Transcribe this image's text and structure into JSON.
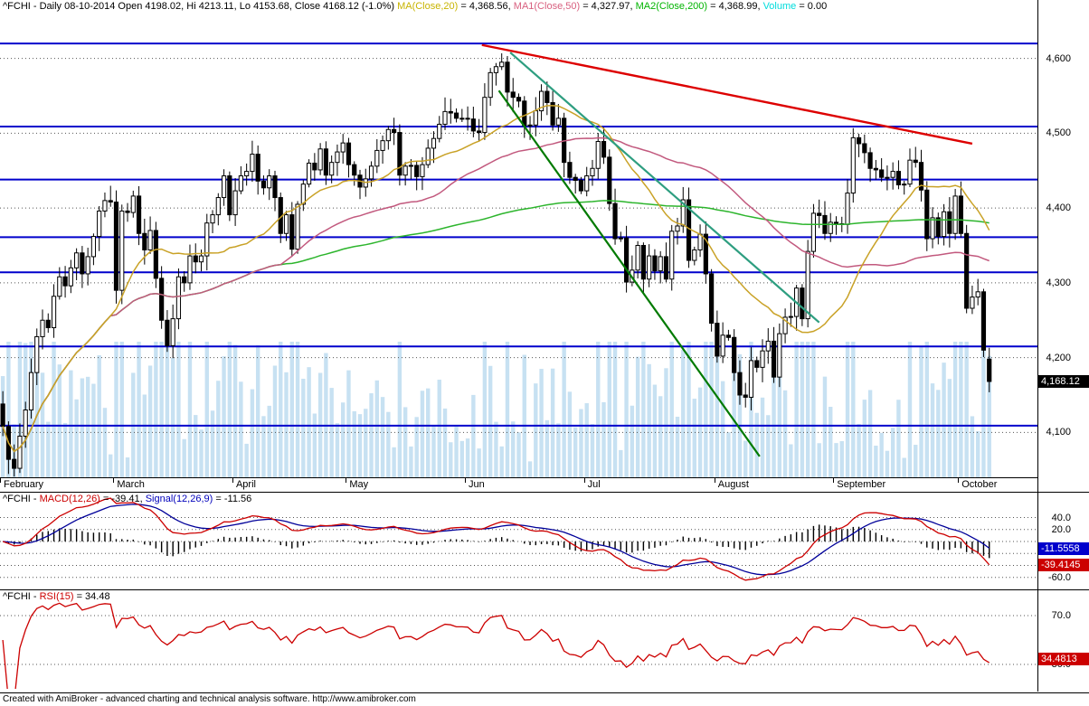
{
  "title_bar": {
    "segments": [
      {
        "text": "^FCHI - Daily 08-10-2014 Open 4198.02, Hi 4213.11, Lo 4153.68, Close 4168.12 (-1.0%) ",
        "color": "#000000"
      },
      {
        "text": "MA(Close,20)",
        "color": "#c8b400"
      },
      {
        "text": " = 4,368.56, ",
        "color": "#000000"
      },
      {
        "text": "MA1(Close,50)",
        "color": "#d8607f"
      },
      {
        "text": " = 4,327.97, ",
        "color": "#000000"
      },
      {
        "text": "MA2(Close,200)",
        "color": "#00b400"
      },
      {
        "text": " = 4,368.99, ",
        "color": "#000000"
      },
      {
        "text": "Volume",
        "color": "#00dcdc"
      },
      {
        "text": " = 0.00",
        "color": "#000000"
      }
    ]
  },
  "footer": {
    "text": "Created with AmiBroker - advanced charting and technical analysis software. http://www.amibroker.com"
  },
  "chart_data": [
    {
      "type": "candlestick",
      "name": "FCHI-daily-price",
      "symbol": "^FCHI",
      "interval": "Daily",
      "date_label": "08-10-2014",
      "ylim": [
        4040,
        4660
      ],
      "yticks": [
        {
          "value": 4600,
          "label": "4,600"
        },
        {
          "value": 4500,
          "label": "4,500"
        },
        {
          "value": 4400,
          "label": "4,400"
        },
        {
          "value": 4300,
          "label": "4,300"
        },
        {
          "value": 4200,
          "label": "4,200"
        },
        {
          "value": 4100,
          "label": "4,100"
        }
      ],
      "last_price": 4168.12,
      "last_price_label": "4,168.12",
      "total_slots": 183,
      "first_open": 4138,
      "months": [
        {
          "label": "February",
          "bar": 0
        },
        {
          "label": "March",
          "bar": 20
        },
        {
          "label": "April",
          "bar": 41
        },
        {
          "label": "May",
          "bar": 61
        },
        {
          "label": "Jun",
          "bar": 82
        },
        {
          "label": "Jul",
          "bar": 103
        },
        {
          "label": "August",
          "bar": 126
        },
        {
          "label": "September",
          "bar": 147
        },
        {
          "label": "October",
          "bar": 169
        }
      ],
      "closes": [
        4108,
        4064,
        4052,
        4095,
        4130,
        4180,
        4228,
        4250,
        4240,
        4282,
        4308,
        4296,
        4320,
        4340,
        4312,
        4335,
        4362,
        4396,
        4410,
        4408,
        4290,
        4396,
        4394,
        4416,
        4366,
        4344,
        4370,
        4306,
        4250,
        4216,
        4252,
        4308,
        4300,
        4336,
        4328,
        4336,
        4380,
        4391,
        4414,
        4443,
        4391,
        4423,
        4443,
        4449,
        4472,
        4436,
        4427,
        4443,
        4414,
        4366,
        4391,
        4345,
        4405,
        4432,
        4460,
        4451,
        4479,
        4444,
        4461,
        4475,
        4487,
        4458,
        4444,
        4428,
        4439,
        4456,
        4477,
        4490,
        4505,
        4501,
        4444,
        4456,
        4457,
        4442,
        4458,
        4480,
        4493,
        4512,
        4529,
        4527,
        4520,
        4520,
        4519,
        4503,
        4501,
        4548,
        4581,
        4589,
        4595,
        4555,
        4548,
        4543,
        4510,
        4511,
        4530,
        4556,
        4541,
        4511,
        4520,
        4461,
        4441,
        4437,
        4423,
        4443,
        4453,
        4489,
        4468,
        4406,
        4359,
        4360,
        4301,
        4317,
        4350,
        4305,
        4336,
        4316,
        4335,
        4305,
        4369,
        4376,
        4411,
        4330,
        4344,
        4365,
        4312,
        4246,
        4202,
        4230,
        4227,
        4180,
        4150,
        4147,
        4196,
        4187,
        4209,
        4222,
        4174,
        4232,
        4254,
        4255,
        4293,
        4252,
        4342,
        4393,
        4390,
        4366,
        4381,
        4379,
        4378,
        4420,
        4494,
        4486,
        4474,
        4453,
        4451,
        4441,
        4441,
        4449,
        4431,
        4432,
        4464,
        4461,
        4424,
        4359,
        4387,
        4362,
        4395,
        4366,
        4416,
        4366,
        4266,
        4281,
        4288,
        4210,
        4168
      ],
      "last_candle": {
        "open": 4198.02,
        "high": 4213.11,
        "low": 4153.68,
        "close": 4168.12
      },
      "support_levels": [
        4620,
        4509,
        4438,
        4361,
        4314,
        4215,
        4109
      ],
      "support_color": "#0000cc",
      "trendlines": [
        {
          "name": "red-resistance-trendline",
          "color": "#dd0000",
          "width": 2.4,
          "from": {
            "slot": 85,
            "price": 4618
          },
          "to": {
            "slot": 171.5,
            "price": 4486
          }
        },
        {
          "name": "teal-downtrend-line",
          "color": "#2e9e80",
          "width": 2.2,
          "from": {
            "slot": 90,
            "price": 4608
          },
          "to": {
            "slot": 144.5,
            "price": 4247
          }
        },
        {
          "name": "green-downtrend-line",
          "color": "#007a00",
          "width": 2.2,
          "from": {
            "slot": 88,
            "price": 4557
          },
          "to": {
            "slot": 134,
            "price": 4068
          }
        }
      ],
      "moving_averages": [
        {
          "name": "MA200",
          "period": 200,
          "color": "#2db52d"
        },
        {
          "name": "MA50",
          "period": 50,
          "color": "#c2597e"
        },
        {
          "name": "MA20",
          "period": 20,
          "color": "#c9a227"
        }
      ],
      "volume_color": "#c7e1f2",
      "candle_up_fill": "#ffffff",
      "candle_down_fill": "#000000",
      "candle_stroke": "#000000"
    },
    {
      "type": "line",
      "name": "MACD",
      "title_segments": [
        {
          "text": "^FCHI - ",
          "color": "#000000"
        },
        {
          "text": "MACD(12,26)",
          "color": "#cc0000"
        },
        {
          "text": " = -39.41, ",
          "color": "#000000"
        },
        {
          "text": "Signal(12,26,9)",
          "color": "#0000bb"
        },
        {
          "text": " = -11.56",
          "color": "#000000"
        }
      ],
      "params": {
        "fast": 12,
        "slow": 26,
        "signal": 9
      },
      "ylim": [
        -80,
        80
      ],
      "gridlines": [
        40,
        20,
        0,
        -20,
        -40,
        -60
      ],
      "yticks": [
        {
          "value": 40,
          "label": "40.0"
        },
        {
          "value": 20,
          "label": "20.0"
        },
        {
          "value": -60,
          "label": "-60.0"
        }
      ],
      "macd_value": -39.4145,
      "macd_badge": "-39.4145",
      "macd_color": "#cc0000",
      "signal_value": -11.5558,
      "signal_badge": "-11.5558",
      "signal_color": "#000099",
      "histogram_color": "#000000"
    },
    {
      "type": "line",
      "name": "RSI",
      "title_segments": [
        {
          "text": "^FCHI - ",
          "color": "#000000"
        },
        {
          "text": "RSI(15)",
          "color": "#cc0000"
        },
        {
          "text": " = 34.48",
          "color": "#000000"
        }
      ],
      "period": 15,
      "ylim": [
        10,
        90
      ],
      "gridlines": [
        70,
        30
      ],
      "yticks": [
        {
          "value": 70,
          "label": "70.0"
        },
        {
          "value": 30,
          "label": "30.0"
        }
      ],
      "value": 34.4813,
      "value_badge": "34.4813",
      "color": "#cc0000"
    }
  ]
}
